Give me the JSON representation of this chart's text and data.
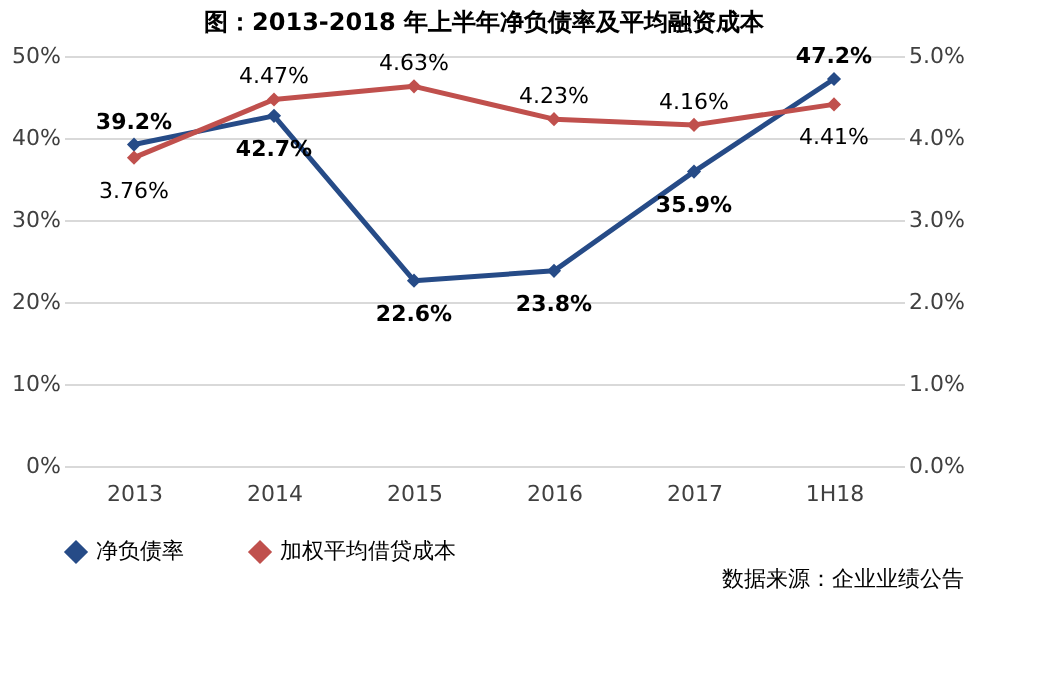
{
  "chart_data": {
    "type": "line",
    "title": "图：2013-2018 年上半年净负债率及平均融资成本",
    "categories": [
      "2013",
      "2014",
      "2015",
      "2016",
      "2017",
      "1H18"
    ],
    "series": [
      {
        "name": "净负债率",
        "color": "#264b87",
        "values": [
          39.2,
          42.7,
          22.6,
          23.8,
          35.9,
          47.2
        ],
        "value_labels": [
          "39.2%",
          "42.7%",
          "22.6%",
          "23.8%",
          "35.9%",
          "47.2%"
        ]
      },
      {
        "name": "加权平均借贷成本",
        "color": "#c0504d",
        "values": [
          3.76,
          4.47,
          4.63,
          4.23,
          4.16,
          4.41
        ],
        "axis": "y2",
        "value_labels": [
          "3.76%",
          "4.47%",
          "4.63%",
          "4.23%",
          "4.16%",
          "4.41%"
        ]
      }
    ],
    "ylim": [
      0,
      50
    ],
    "yticks": [
      {
        "value": 0,
        "label": "0%"
      },
      {
        "value": 10,
        "label": "10%"
      },
      {
        "value": 20,
        "label": "20%"
      },
      {
        "value": 30,
        "label": "30%"
      },
      {
        "value": 40,
        "label": "40%"
      },
      {
        "value": 50,
        "label": "50%"
      }
    ],
    "y2lim": [
      0,
      5
    ],
    "y2ticks": [
      {
        "value": 0,
        "label": "0.0%"
      },
      {
        "value": 1,
        "label": "1.0%"
      },
      {
        "value": 2,
        "label": "2.0%"
      },
      {
        "value": 3,
        "label": "3.0%"
      },
      {
        "value": 4,
        "label": "4.0%"
      },
      {
        "value": 5,
        "label": "5.0%"
      }
    ],
    "grid": "y",
    "legend": "bottom",
    "marker": "diamond",
    "line_style": "solid",
    "annotations": [
      "数据来源：企业业绩公告"
    ]
  }
}
